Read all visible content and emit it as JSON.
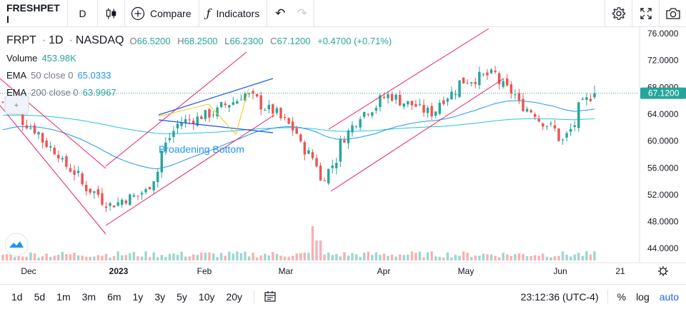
{
  "toolbar": {
    "symbol": "FRESHPET I",
    "interval": "D",
    "candle_icon": "candles-icon",
    "compare_label": "Compare",
    "indicators_label": "Indicators",
    "undo_glyph": "↶",
    "redo_glyph": "↷"
  },
  "legend": {
    "symbol": "FRPT",
    "interval": "1D",
    "exchange": "NASDAQ",
    "open_label": "O",
    "open": "66.5200",
    "high_label": "H",
    "high": "68.2500",
    "low_label": "L",
    "low": "66.2300",
    "close_label": "C",
    "close": "67.1200",
    "change": "+0.4700 (+0.71%)",
    "volume_label": "Volume",
    "volume": "453.98K",
    "ema50_label": "EMA",
    "ema50_args": "50 close 0",
    "ema50_value": "65.0333",
    "ema200_label": "EMA",
    "ema200_args": "200 close 0",
    "ema200_value": "63.9967"
  },
  "annotation": "Broadening Bottom",
  "price_axis": {
    "ticks": [
      "76.0000",
      "72.0000",
      "68.0000",
      "64.0000",
      "60.0000",
      "56.0000",
      "52.0000",
      "48.0000",
      "44.0000"
    ],
    "last_price": "67.1200"
  },
  "time_axis": {
    "labels": [
      "Dec",
      "2023",
      "Feb",
      "Mar",
      "Apr",
      "May",
      "Jun",
      "21"
    ]
  },
  "bottom": {
    "ranges": [
      "1d",
      "5d",
      "1m",
      "3m",
      "6m",
      "1y",
      "3y",
      "5y",
      "10y",
      "20y"
    ],
    "clock": "23:12:36 (UTC-4)",
    "percent": "%",
    "log": "log",
    "auto": "auto"
  },
  "colors": {
    "up": "#26a69a",
    "down": "#ef5350",
    "ema50": "#2196f3",
    "ema200": "#26c6da",
    "channel": "#e91e63",
    "last_price_bg": "#26a69a"
  },
  "chart_data": {
    "type": "candlestick",
    "xlabel": "",
    "ylabel": "",
    "ylim": [
      42.5,
      77.5
    ],
    "months": [
      "Dec",
      "2023",
      "Feb",
      "Mar",
      "Apr",
      "May",
      "Jun",
      "21"
    ],
    "approx_close_path": [
      {
        "date": "2022-11-21",
        "close": 65.8
      },
      {
        "date": "2022-12-05",
        "close": 60.0
      },
      {
        "date": "2022-12-20",
        "close": 53.0
      },
      {
        "date": "2022-12-28",
        "close": 50.5
      },
      {
        "date": "2023-01-10",
        "close": 52.5
      },
      {
        "date": "2023-01-20",
        "close": 62.5
      },
      {
        "date": "2023-02-01",
        "close": 64.0
      },
      {
        "date": "2023-02-14",
        "close": 67.0
      },
      {
        "date": "2023-02-28",
        "close": 63.0
      },
      {
        "date": "2023-03-09",
        "close": 57.5
      },
      {
        "date": "2023-03-13",
        "close": 54.0
      },
      {
        "date": "2023-03-24",
        "close": 63.0
      },
      {
        "date": "2023-04-05",
        "close": 66.8
      },
      {
        "date": "2023-04-20",
        "close": 64.2
      },
      {
        "date": "2023-05-01",
        "close": 68.8
      },
      {
        "date": "2023-05-12",
        "close": 70.0
      },
      {
        "date": "2023-05-22",
        "close": 65.5
      },
      {
        "date": "2023-05-31",
        "close": 62.5
      },
      {
        "date": "2023-06-06",
        "close": 60.0
      },
      {
        "date": "2023-06-12",
        "close": 65.0
      },
      {
        "date": "2023-06-16",
        "close": 67.12
      }
    ]
  }
}
